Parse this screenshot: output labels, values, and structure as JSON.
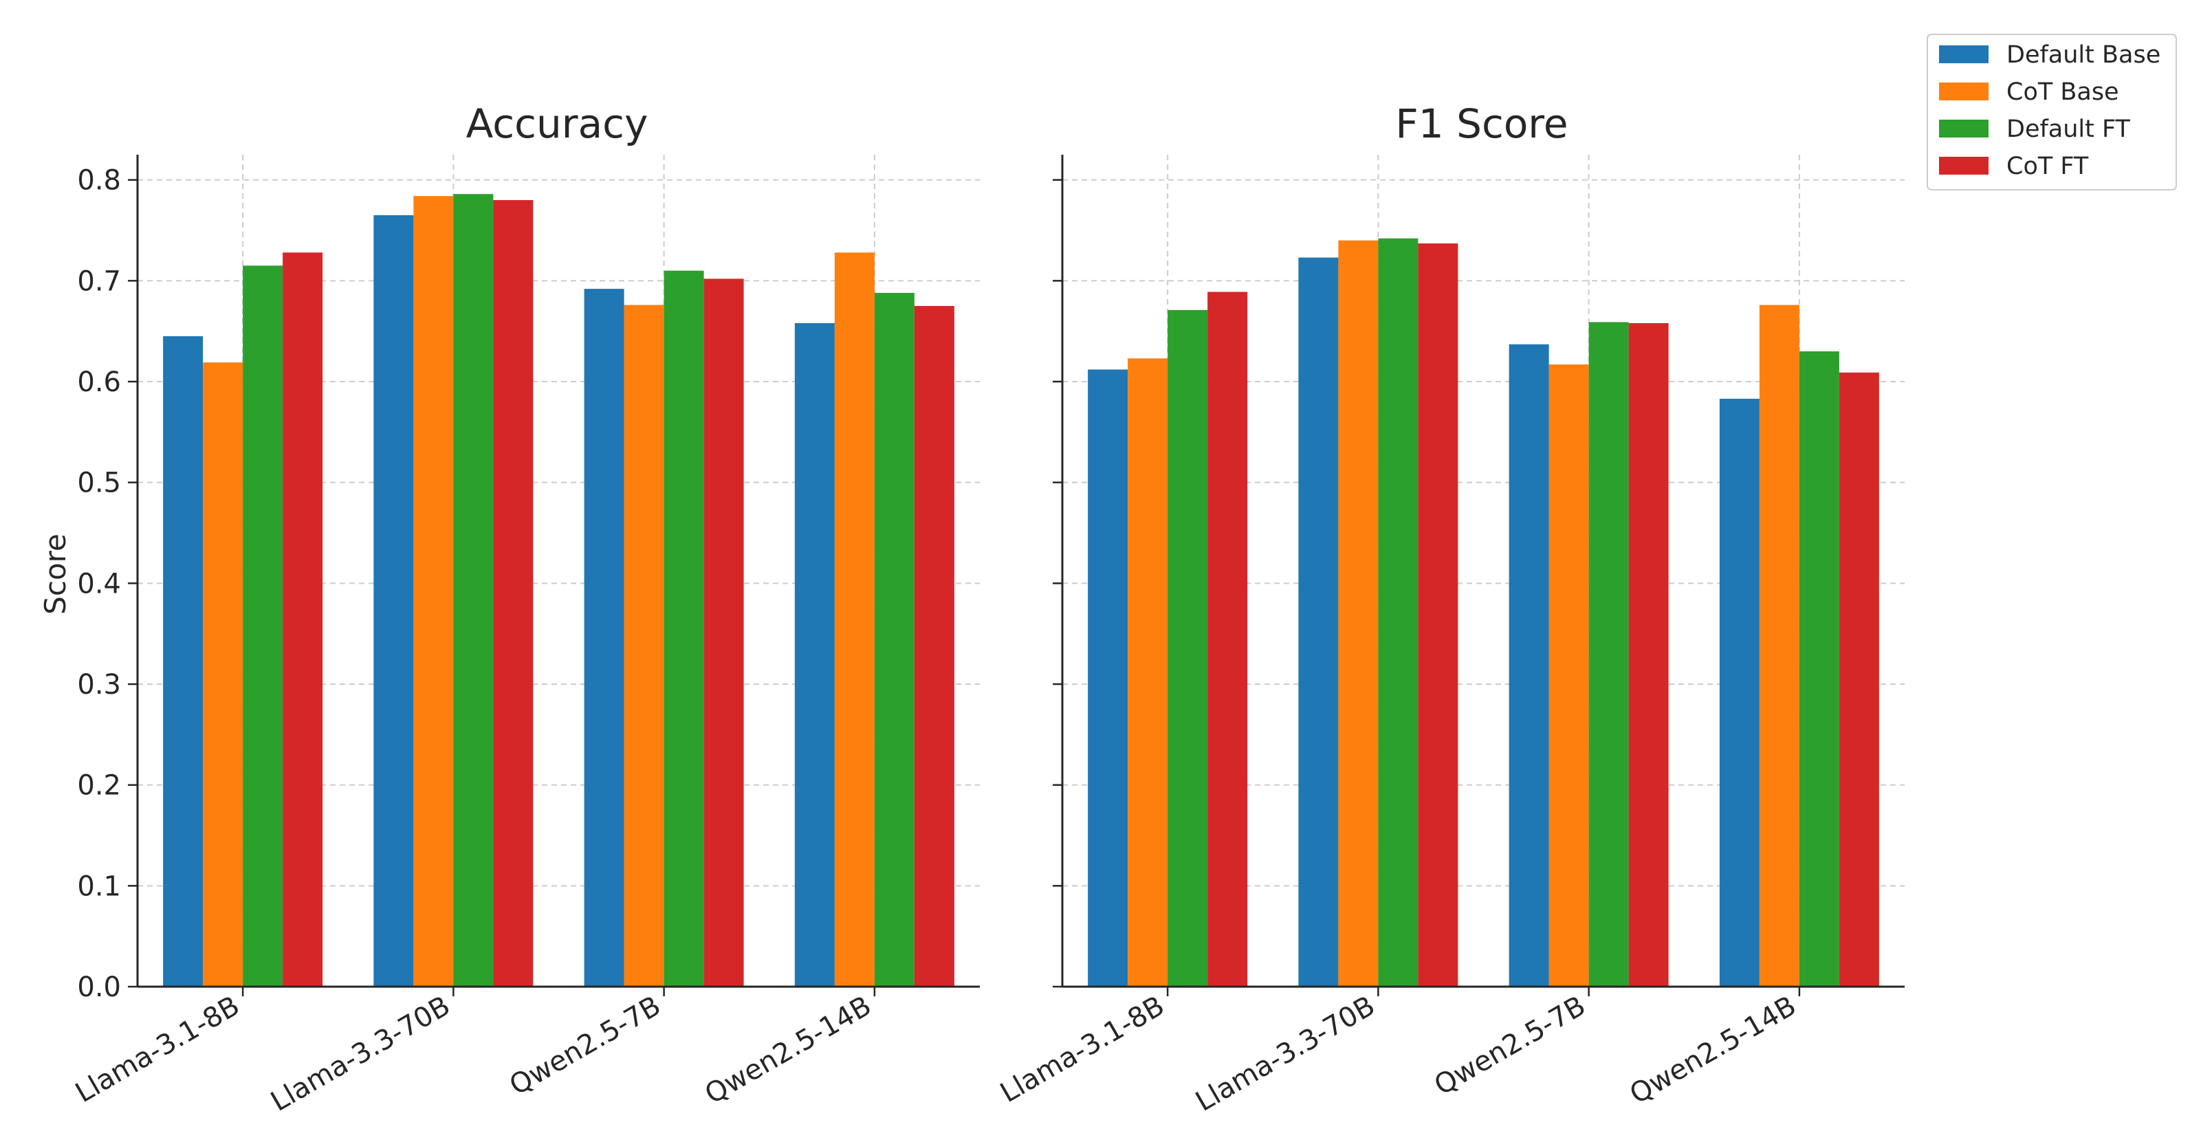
{
  "chart_data": {
    "type": "bar",
    "layout": "two grouped bar subplots sharing y axis",
    "categories": [
      "Llama-3.1-8B",
      "Llama-3.3-70B",
      "Qwen2.5-7B",
      "Qwen2.5-14B"
    ],
    "ylabel": "Score",
    "ylim": [
      0,
      0.825
    ],
    "yticks": [
      0.0,
      0.1,
      0.2,
      0.3,
      0.4,
      0.5,
      0.6,
      0.7,
      0.8
    ],
    "ytick_labels": [
      "0.0",
      "0.1",
      "0.2",
      "0.3",
      "0.4",
      "0.5",
      "0.6",
      "0.7",
      "0.8"
    ],
    "grid": true,
    "legend": {
      "placement": "top-right outside",
      "entries": [
        {
          "name": "Default Base",
          "color": "#1f77b4"
        },
        {
          "name": "CoT Base",
          "color": "#ff7f0e"
        },
        {
          "name": "Default FT",
          "color": "#2ca02c"
        },
        {
          "name": "CoT FT",
          "color": "#d62728"
        }
      ]
    },
    "subplots": [
      {
        "title": "Accuracy",
        "series": [
          {
            "name": "Default Base",
            "values": [
              0.645,
              0.765,
              0.692,
              0.658
            ]
          },
          {
            "name": "CoT Base",
            "values": [
              0.619,
              0.784,
              0.676,
              0.728
            ]
          },
          {
            "name": "Default FT",
            "values": [
              0.715,
              0.786,
              0.71,
              0.688
            ]
          },
          {
            "name": "CoT FT",
            "values": [
              0.728,
              0.78,
              0.702,
              0.675
            ]
          }
        ]
      },
      {
        "title": "F1 Score",
        "series": [
          {
            "name": "Default Base",
            "values": [
              0.612,
              0.723,
              0.637,
              0.583
            ]
          },
          {
            "name": "CoT Base",
            "values": [
              0.623,
              0.74,
              0.617,
              0.676
            ]
          },
          {
            "name": "Default FT",
            "values": [
              0.671,
              0.742,
              0.659,
              0.63
            ]
          },
          {
            "name": "CoT FT",
            "values": [
              0.689,
              0.737,
              0.658,
              0.609
            ]
          }
        ]
      }
    ]
  }
}
